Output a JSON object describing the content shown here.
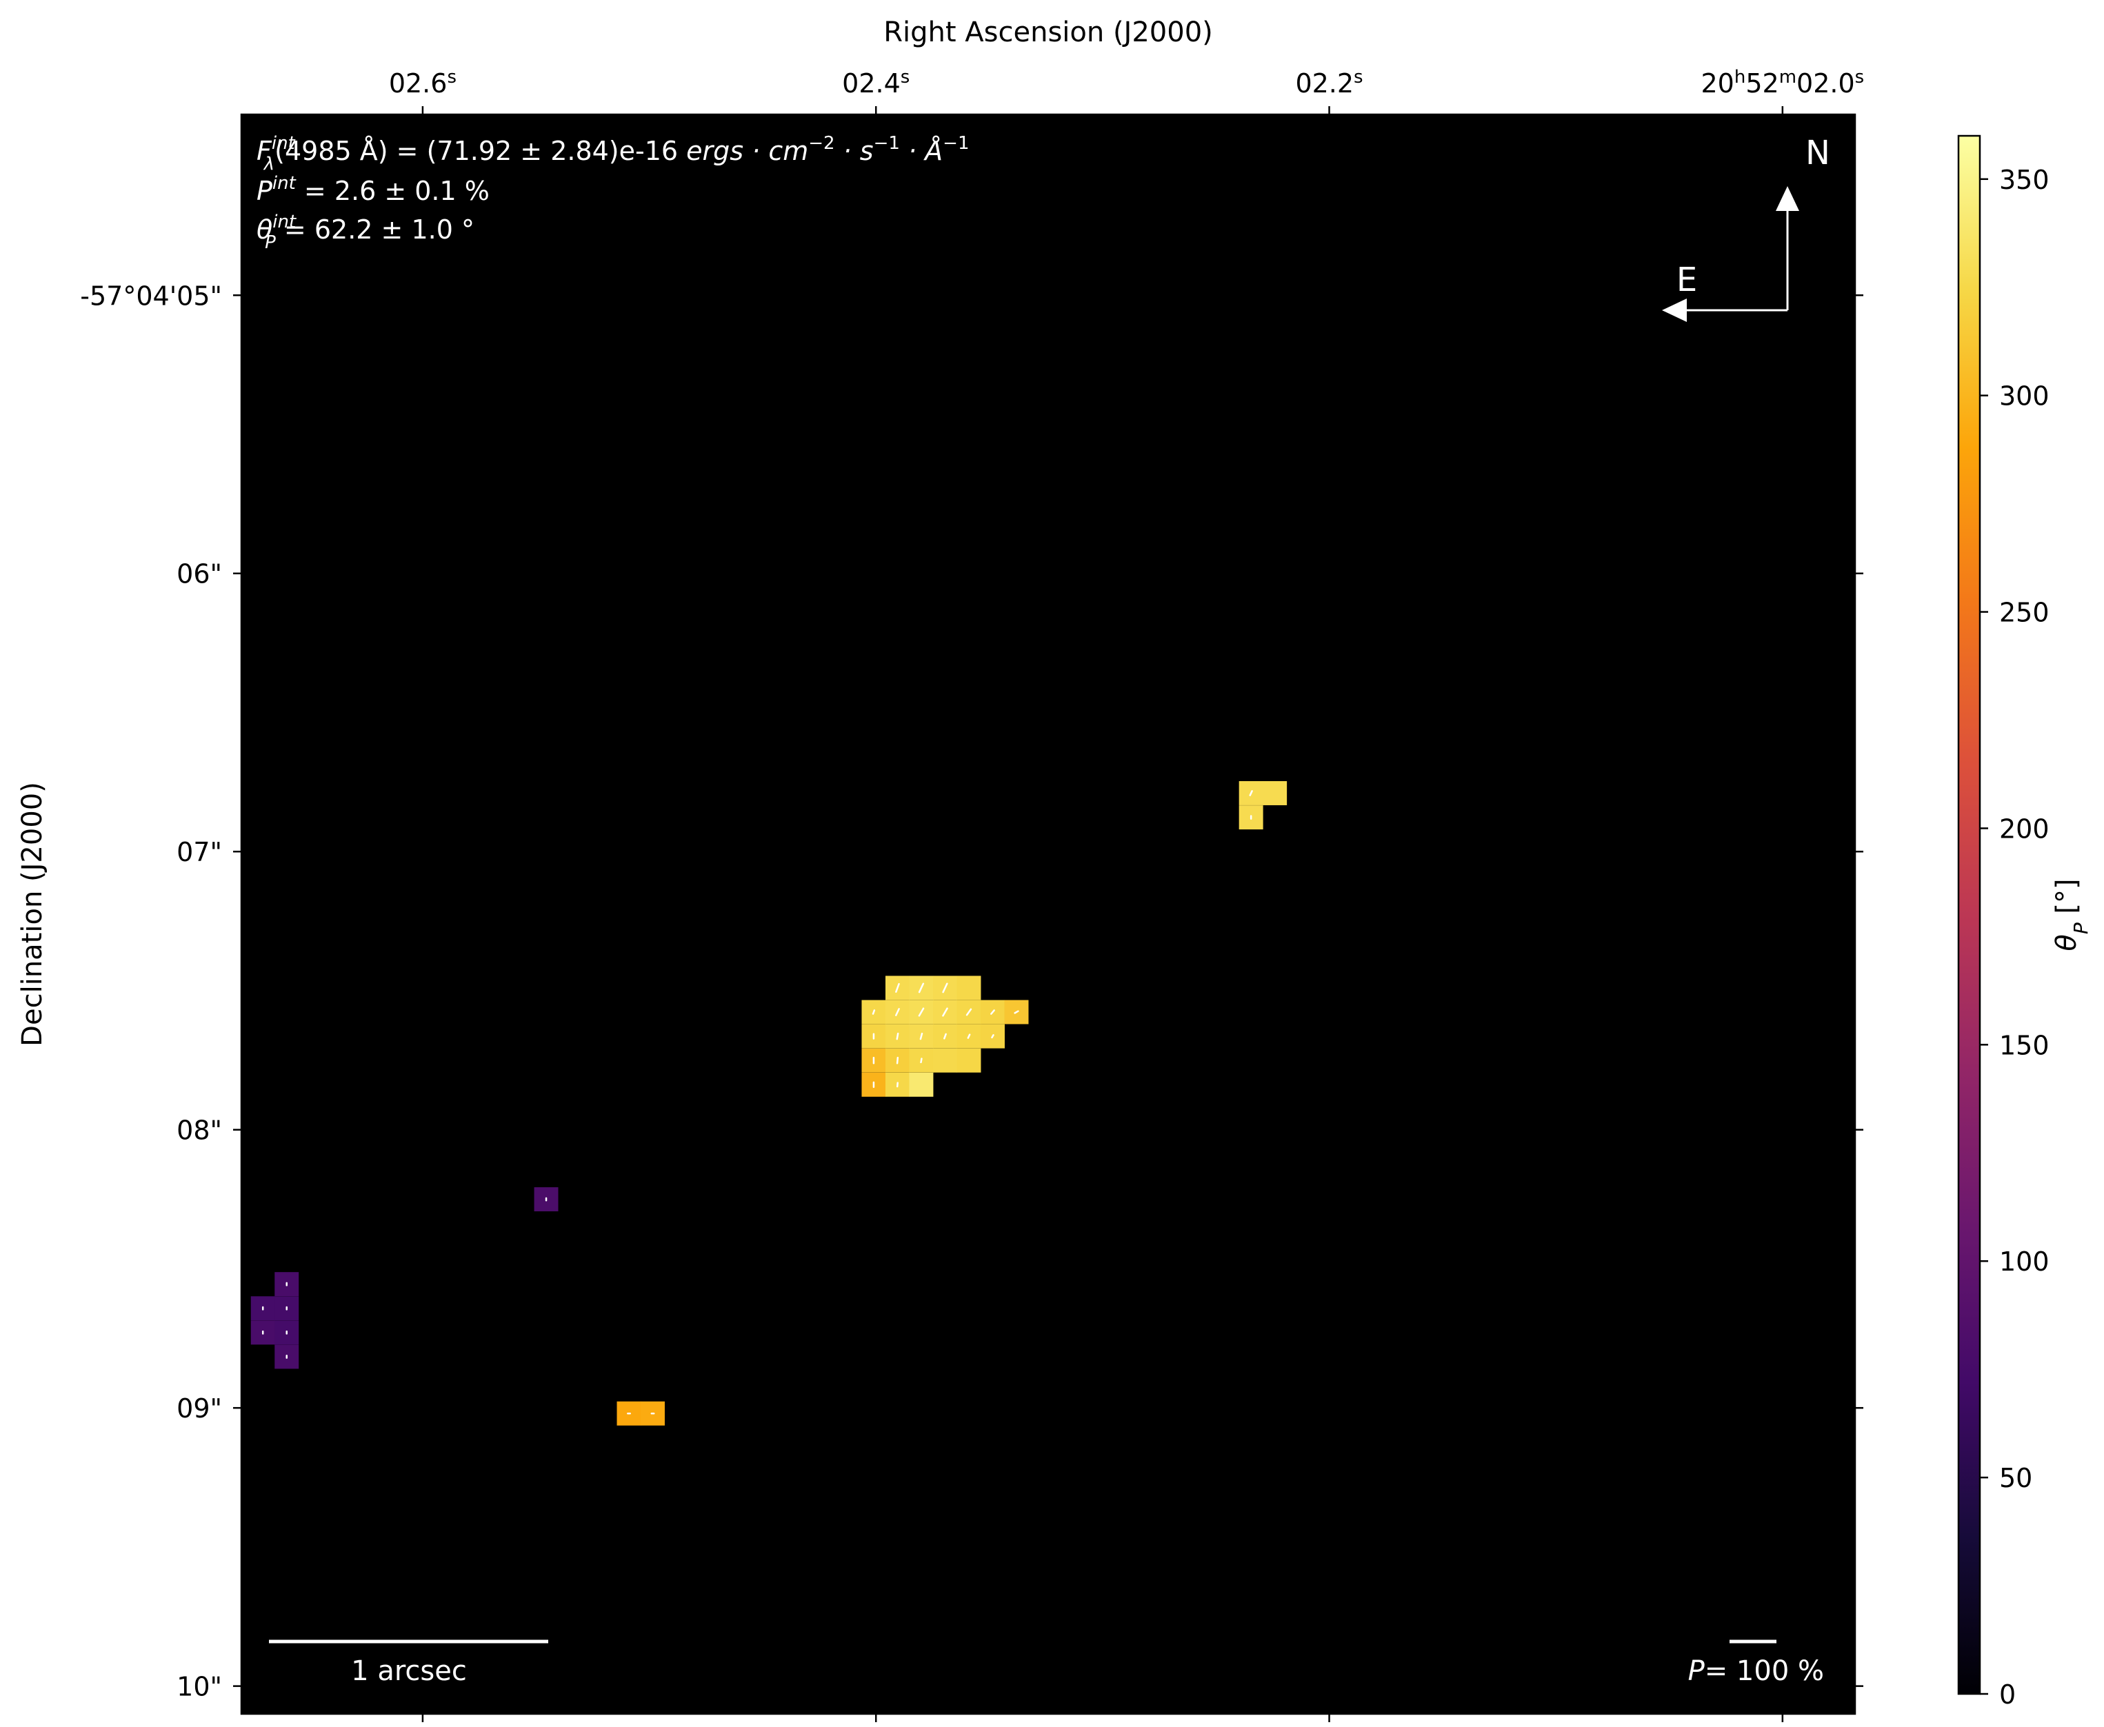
{
  "chart_data": {
    "type": "heatmap",
    "title": "",
    "xlabel": "Right Ascension (J2000)",
    "ylabel": "Declination (J2000)",
    "x_ticks": [
      {
        "value": 2.6,
        "label": "02.6",
        "unit": "s"
      },
      {
        "value": 2.4,
        "label": "02.4",
        "unit": "s"
      },
      {
        "value": 2.2,
        "label": "02.2",
        "unit": "s"
      },
      {
        "value": 2.0,
        "label_parts": [
          "20",
          "h",
          "52",
          "m",
          "02.0",
          "s"
        ]
      }
    ],
    "y_ticks": [
      {
        "value": 5,
        "label": "-57°04'05\""
      },
      {
        "value": 6,
        "label": "06\""
      },
      {
        "value": 7,
        "label": "07\""
      },
      {
        "value": 8,
        "label": "08\""
      },
      {
        "value": 9,
        "label": "09\""
      },
      {
        "value": 10,
        "label": "10\""
      }
    ],
    "x_range_seconds": [
      2.68,
      1.968
    ],
    "y_range_arcsec": [
      4.35,
      10.1
    ],
    "grid": false,
    "pixel_size_arcsec": 0.0866,
    "colorbar": {
      "label": "θ_P [°]",
      "min": 0,
      "max": 360,
      "ticks": [
        0,
        50,
        100,
        150,
        200,
        250,
        300,
        350
      ],
      "colormap": "inferno"
    },
    "annotations": {
      "flux_lines": [
        [
          "F",
          {
            "sub": "λ",
            "sup": "int"
          },
          "(4985 Å) = (71.92 ± 2.84)e-16 ",
          {
            "italic": "ergs · cm"
          },
          {
            "sup": "−2"
          },
          {
            "italic": " · s"
          },
          {
            "sup": "−1"
          },
          {
            "italic": " · Å"
          },
          {
            "sup": "−1"
          }
        ],
        [
          "P",
          {
            "sup": "int"
          },
          " = 2.6 ± 0.1 %"
        ],
        [
          "θ",
          {
            "sub": "P",
            "sup": "int"
          },
          " = 62.2 ± 1.0 °"
        ]
      ],
      "compass_north": "N",
      "compass_east": "E",
      "scale_bar_label": "1 arcsec",
      "polarization_scale_prefix": "P",
      "polarization_scale_label": "= 100 %"
    },
    "pixels": [
      {
        "ra": 2.3905,
        "dec": 7.49,
        "theta": 328
      },
      {
        "ra": 2.38,
        "dec": 7.49,
        "theta": 330
      },
      {
        "ra": 2.3695,
        "dec": 7.49,
        "theta": 328
      },
      {
        "ra": 2.359,
        "dec": 7.49,
        "theta": 325
      },
      {
        "ra": 2.401,
        "dec": 7.577,
        "theta": 325
      },
      {
        "ra": 2.3905,
        "dec": 7.577,
        "theta": 328
      },
      {
        "ra": 2.38,
        "dec": 7.577,
        "theta": 330
      },
      {
        "ra": 2.3695,
        "dec": 7.577,
        "theta": 328
      },
      {
        "ra": 2.359,
        "dec": 7.577,
        "theta": 325
      },
      {
        "ra": 2.3485,
        "dec": 7.577,
        "theta": 322
      },
      {
        "ra": 2.338,
        "dec": 7.577,
        "theta": 312
      },
      {
        "ra": 2.401,
        "dec": 7.664,
        "theta": 322
      },
      {
        "ra": 2.3905,
        "dec": 7.664,
        "theta": 326
      },
      {
        "ra": 2.38,
        "dec": 7.664,
        "theta": 328
      },
      {
        "ra": 2.3695,
        "dec": 7.664,
        "theta": 326
      },
      {
        "ra": 2.359,
        "dec": 7.664,
        "theta": 324
      },
      {
        "ra": 2.3485,
        "dec": 7.664,
        "theta": 322
      },
      {
        "ra": 2.401,
        "dec": 7.751,
        "theta": 305
      },
      {
        "ra": 2.3905,
        "dec": 7.751,
        "theta": 318
      },
      {
        "ra": 2.38,
        "dec": 7.751,
        "theta": 325
      },
      {
        "ra": 2.3695,
        "dec": 7.751,
        "theta": 326
      },
      {
        "ra": 2.359,
        "dec": 7.751,
        "theta": 324
      },
      {
        "ra": 2.401,
        "dec": 7.838,
        "theta": 298
      },
      {
        "ra": 2.3905,
        "dec": 7.838,
        "theta": 325
      },
      {
        "ra": 2.38,
        "dec": 7.838,
        "theta": 340
      },
      {
        "ra": 2.2345,
        "dec": 6.79,
        "theta": 328
      },
      {
        "ra": 2.224,
        "dec": 6.79,
        "theta": 328
      },
      {
        "ra": 2.2345,
        "dec": 6.877,
        "theta": 328
      },
      {
        "ra": 2.5455,
        "dec": 8.25,
        "theta": 80
      },
      {
        "ra": 2.66,
        "dec": 8.555,
        "theta": 78
      },
      {
        "ra": 2.6705,
        "dec": 8.642,
        "theta": 75
      },
      {
        "ra": 2.66,
        "dec": 8.642,
        "theta": 75
      },
      {
        "ra": 2.6705,
        "dec": 8.729,
        "theta": 78
      },
      {
        "ra": 2.66,
        "dec": 8.729,
        "theta": 75
      },
      {
        "ra": 2.66,
        "dec": 8.816,
        "theta": 78
      },
      {
        "ra": 2.509,
        "dec": 9.02,
        "theta": 290
      },
      {
        "ra": 2.4985,
        "dec": 9.02,
        "theta": 292
      }
    ],
    "vectors": [
      {
        "ra": 2.3905,
        "dec": 7.49,
        "p": 18,
        "angle": 20
      },
      {
        "ra": 2.38,
        "dec": 7.49,
        "p": 20,
        "angle": 25
      },
      {
        "ra": 2.3695,
        "dec": 7.49,
        "p": 20,
        "angle": 25
      },
      {
        "ra": 2.401,
        "dec": 7.577,
        "p": 8,
        "angle": 20
      },
      {
        "ra": 2.3905,
        "dec": 7.577,
        "p": 15,
        "angle": 25
      },
      {
        "ra": 2.38,
        "dec": 7.577,
        "p": 18,
        "angle": 30
      },
      {
        "ra": 2.3695,
        "dec": 7.577,
        "p": 18,
        "angle": 30
      },
      {
        "ra": 2.359,
        "dec": 7.577,
        "p": 15,
        "angle": 35
      },
      {
        "ra": 2.3485,
        "dec": 7.577,
        "p": 10,
        "angle": 40
      },
      {
        "ra": 2.338,
        "dec": 7.577,
        "p": 8,
        "angle": 60
      },
      {
        "ra": 2.401,
        "dec": 7.664,
        "p": 10,
        "angle": 0
      },
      {
        "ra": 2.3905,
        "dec": 7.664,
        "p": 12,
        "angle": 10
      },
      {
        "ra": 2.38,
        "dec": 7.664,
        "p": 12,
        "angle": 15
      },
      {
        "ra": 2.3695,
        "dec": 7.664,
        "p": 10,
        "angle": 20
      },
      {
        "ra": 2.359,
        "dec": 7.664,
        "p": 8,
        "angle": 25
      },
      {
        "ra": 2.3485,
        "dec": 7.664,
        "p": 6,
        "angle": 30
      },
      {
        "ra": 2.401,
        "dec": 7.751,
        "p": 12,
        "angle": 0
      },
      {
        "ra": 2.3905,
        "dec": 7.751,
        "p": 12,
        "angle": 5
      },
      {
        "ra": 2.38,
        "dec": 7.751,
        "p": 8,
        "angle": 10
      },
      {
        "ra": 2.401,
        "dec": 7.838,
        "p": 10,
        "angle": 0
      },
      {
        "ra": 2.3905,
        "dec": 7.838,
        "p": 8,
        "angle": 5
      },
      {
        "ra": 2.2345,
        "dec": 6.79,
        "p": 10,
        "angle": 25
      },
      {
        "ra": 2.2345,
        "dec": 6.877,
        "p": 6,
        "angle": 0
      },
      {
        "ra": 2.5455,
        "dec": 8.25,
        "p": 5,
        "angle": 0
      },
      {
        "ra": 2.66,
        "dec": 8.555,
        "p": 5,
        "angle": 0
      },
      {
        "ra": 2.6705,
        "dec": 8.642,
        "p": 5,
        "angle": 0
      },
      {
        "ra": 2.66,
        "dec": 8.642,
        "p": 5,
        "angle": 0
      },
      {
        "ra": 2.6705,
        "dec": 8.729,
        "p": 5,
        "angle": 0
      },
      {
        "ra": 2.66,
        "dec": 8.729,
        "p": 5,
        "angle": 0
      },
      {
        "ra": 2.66,
        "dec": 8.816,
        "p": 5,
        "angle": 0
      },
      {
        "ra": 2.509,
        "dec": 9.02,
        "p": 5,
        "angle": 90
      },
      {
        "ra": 2.4985,
        "dec": 9.02,
        "p": 5,
        "angle": 90
      }
    ]
  }
}
